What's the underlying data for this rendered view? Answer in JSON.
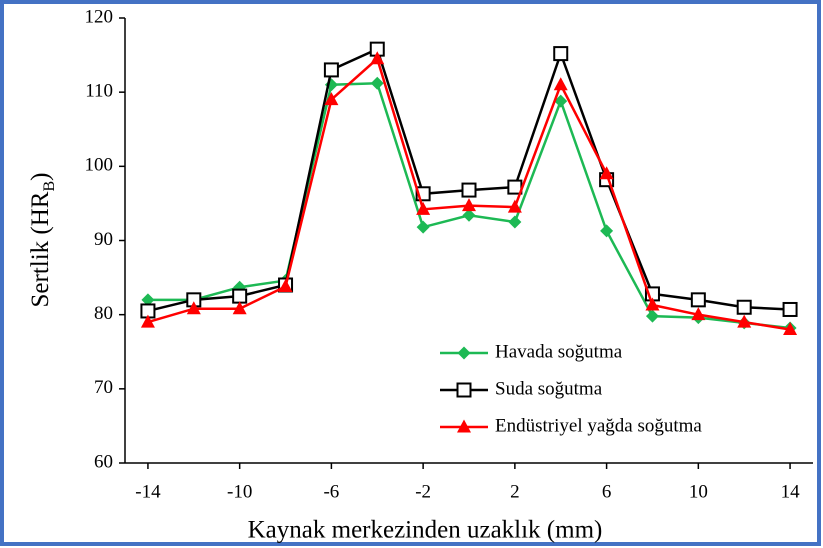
{
  "chart_data": {
    "type": "line",
    "x_label": "Kaynak merkezinden uzaklık (mm)",
    "y_label": {
      "text": "Sertlik (HR",
      "subscript": "B",
      "suffix": ")"
    },
    "x": [
      -14,
      -12,
      -10,
      -8,
      -6,
      -4,
      -2,
      0,
      2,
      4,
      6,
      8,
      10,
      12,
      14
    ],
    "series": [
      {
        "name": "Havada soğutma",
        "color": "#1db954",
        "marker": "diamond",
        "values": [
          82,
          82,
          83.7,
          84.6,
          111,
          111.2,
          91.8,
          93.4,
          92.5,
          108.8,
          91.3,
          79.8,
          79.6,
          78.9,
          78.2
        ]
      },
      {
        "name": "Suda soğutma",
        "color": "#000000",
        "marker": "square-open",
        "values": [
          80.5,
          82,
          82.5,
          84,
          113,
          115.8,
          96.3,
          96.8,
          97.2,
          115.2,
          98.2,
          82.8,
          82,
          81,
          80.7
        ]
      },
      {
        "name": "Endüstriyel yağda soğutma",
        "color": "#ff0000",
        "marker": "triangle",
        "values": [
          79,
          80.8,
          80.8,
          83.8,
          109,
          114.5,
          94.2,
          94.7,
          94.5,
          111,
          99,
          81.3,
          80,
          79,
          78
        ]
      }
    ],
    "xlim": [
      -15,
      15
    ],
    "xticks": [
      -14,
      -10,
      -6,
      -2,
      2,
      6,
      10,
      14
    ],
    "ylim": [
      60,
      120
    ],
    "yticks": [
      60,
      70,
      80,
      90,
      100,
      110,
      120
    ],
    "legend": "lower right"
  }
}
